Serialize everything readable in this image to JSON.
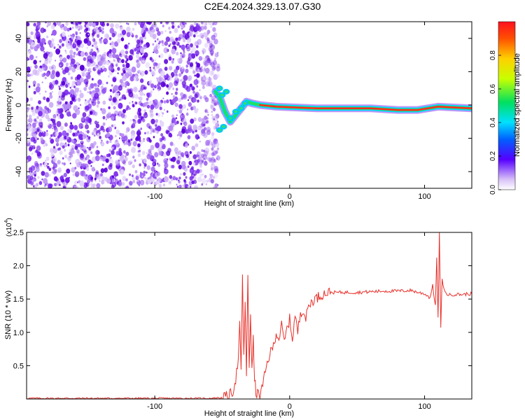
{
  "title": "C2E4.2024.329.13.07.G30",
  "colors": {
    "speckle_dark": "#6a00e0",
    "speckle_light": "#c9a8f5",
    "snr_line": "#e8302a",
    "axis": "#000000"
  },
  "top_chart": {
    "type": "heatmap",
    "xlabel": "Height of straight line (km)",
    "ylabel": "Frequency (Hz)",
    "xlim": [
      -195,
      135
    ],
    "ylim": [
      -50,
      50
    ],
    "x_ticks": [
      -100,
      0,
      100
    ],
    "y_ticks": [
      -40,
      -20,
      0,
      20,
      40
    ],
    "noise_region_x": [
      -195,
      -57
    ],
    "signal_start_x": -57,
    "ridge": [
      {
        "x": -55,
        "y": 8
      },
      {
        "x": -52,
        "y": 5
      },
      {
        "x": -48,
        "y": -4
      },
      {
        "x": -44,
        "y": -10
      },
      {
        "x": -40,
        "y": -6
      },
      {
        "x": -36,
        "y": -2
      },
      {
        "x": -32,
        "y": 2
      },
      {
        "x": -28,
        "y": 1
      },
      {
        "x": -22,
        "y": 0
      },
      {
        "x": -10,
        "y": -1
      },
      {
        "x": 20,
        "y": -2
      },
      {
        "x": 60,
        "y": -2
      },
      {
        "x": 80,
        "y": -3
      },
      {
        "x": 95,
        "y": -3
      },
      {
        "x": 110,
        "y": -1
      },
      {
        "x": 135,
        "y": -2
      }
    ],
    "colorbar": {
      "label": "Normalized spectral amplitude",
      "range": [
        0.0,
        1.0
      ],
      "ticks": [
        "0.0",
        "0.2",
        "0.4",
        "0.6",
        "0.8"
      ]
    }
  },
  "chart_data": {
    "type": "line",
    "xlabel": "Height of straight line (km)",
    "ylabel": "SNR (10 * v/v)",
    "y_multiplier": "(x10",
    "y_multiplier_exp": "4",
    "xlim": [
      -195,
      135
    ],
    "ylim": [
      0,
      2.5
    ],
    "x_ticks": [
      -100,
      0,
      100
    ],
    "y_ticks": [
      0.5,
      1.0,
      1.5,
      2.0,
      2.5
    ],
    "y_tick_labels": [
      "0.5",
      "1.0",
      "1.5",
      "2.0",
      "2.5"
    ],
    "series": [
      {
        "x": [
          -195,
          -150,
          -100,
          -60,
          -50,
          -45,
          -42,
          -40,
          -38,
          -37,
          -36,
          -35,
          -34,
          -33,
          -32,
          -31,
          -30,
          -29,
          -28,
          -27,
          -26,
          -25,
          -22,
          -20,
          -18,
          -16,
          -14,
          -12,
          -10,
          -8,
          -6,
          -4,
          -2,
          0,
          2,
          4,
          6,
          8,
          10,
          12,
          14,
          16,
          18,
          20,
          25,
          30,
          40,
          50,
          60,
          70,
          80,
          90,
          95,
          100,
          104,
          106,
          108,
          109,
          110,
          111,
          112,
          113,
          115,
          118,
          122,
          128,
          135
        ],
        "y": [
          0.01,
          0.01,
          0.01,
          0.01,
          0.02,
          0.05,
          0.12,
          0.3,
          0.6,
          1.1,
          0.4,
          1.88,
          0.6,
          1.5,
          0.3,
          1.85,
          0.5,
          1.3,
          0.4,
          0.9,
          0.3,
          0.1,
          0.05,
          0.2,
          0.4,
          0.6,
          0.7,
          0.8,
          1.0,
          0.9,
          1.1,
          0.85,
          1.05,
          1.2,
          0.9,
          1.25,
          1.0,
          1.3,
          1.35,
          1.2,
          1.4,
          1.45,
          1.5,
          1.52,
          1.58,
          1.6,
          1.6,
          1.6,
          1.61,
          1.62,
          1.62,
          1.63,
          1.6,
          1.58,
          1.52,
          1.7,
          1.4,
          2.1,
          1.2,
          2.5,
          1.05,
          1.8,
          1.6,
          1.56,
          1.57,
          1.57,
          1.58
        ]
      }
    ]
  }
}
